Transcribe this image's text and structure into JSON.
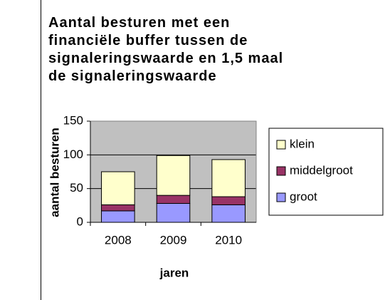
{
  "chart_data": {
    "type": "stacked_bar",
    "title": [
      "Aantal besturen met een",
      "financiële buffer tussen de",
      "signaleringswaarde en 1,5 maal",
      "de signaleringswaarde"
    ],
    "x_label": "jaren",
    "y_label": "aantal besturen",
    "categories": [
      "2008",
      "2009",
      "2010"
    ],
    "series": [
      {
        "name": "groot",
        "color": "#9999ff",
        "values": [
          17,
          28,
          26
        ]
      },
      {
        "name": "middelgroot",
        "color": "#993366",
        "values": [
          9,
          12,
          12
        ]
      },
      {
        "name": "klein",
        "color": "#ffffcc",
        "values": [
          49,
          59,
          55
        ]
      }
    ],
    "ylim": [
      0,
      150
    ],
    "yticks": [
      0,
      50,
      100,
      150
    ],
    "grid": true,
    "legend": "right"
  }
}
